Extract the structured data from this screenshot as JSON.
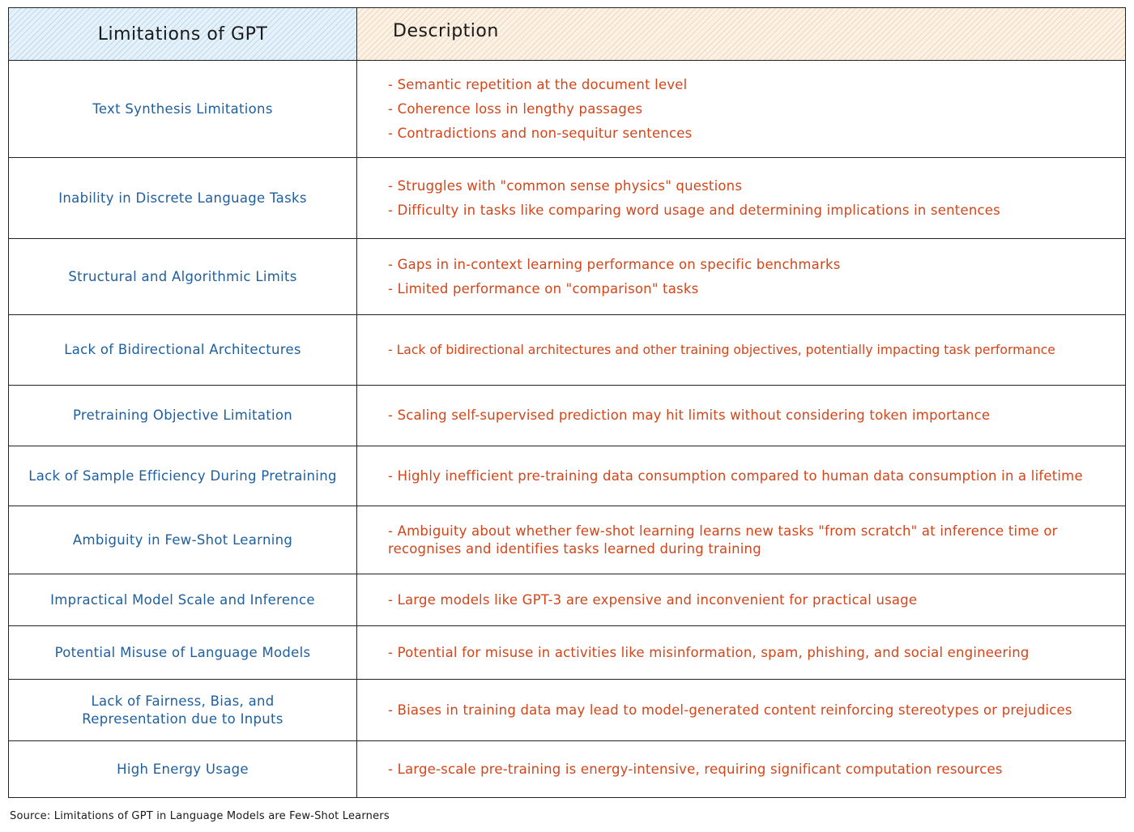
{
  "header": {
    "col1": "Limitations of GPT",
    "col2": "Description"
  },
  "rows": [
    {
      "limitation": "Text Synthesis Limitations",
      "descriptions": [
        "- Semantic repetition at the document level",
        "- Coherence loss in lengthy passages",
        "- Contradictions and non-sequitur sentences"
      ]
    },
    {
      "limitation": "Inability in Discrete Language Tasks",
      "descriptions": [
        "- Struggles with \"common sense physics\" questions",
        "- Difficulty in tasks like comparing word usage and determining implications in sentences"
      ]
    },
    {
      "limitation": "Structural and Algorithmic Limits",
      "descriptions": [
        "- Gaps in in-context learning performance on specific benchmarks",
        "- Limited performance on \"comparison\" tasks"
      ]
    },
    {
      "limitation": "Lack of Bidirectional Architectures",
      "descriptions": [
        "- Lack of bidirectional architectures and other training objectives, potentially impacting task performance"
      ]
    },
    {
      "limitation": "Pretraining Objective Limitation",
      "descriptions": [
        "- Scaling self-supervised prediction may hit limits without considering token importance"
      ]
    },
    {
      "limitation": "Lack of Sample Efficiency During Pretraining",
      "descriptions": [
        "- Highly inefficient pre-training data consumption compared to human data consumption in a lifetime"
      ]
    },
    {
      "limitation": "Ambiguity in Few-Shot Learning",
      "descriptions": [
        "- Ambiguity about whether few-shot learning learns new tasks \"from scratch\" at inference time or recognises and identifies tasks learned during training"
      ]
    },
    {
      "limitation": "Impractical Model Scale and Inference",
      "descriptions": [
        "- Large models like GPT-3 are expensive and inconvenient for practical usage"
      ]
    },
    {
      "limitation": "Potential Misuse of Language Models",
      "descriptions": [
        "- Potential for misuse in activities like misinformation, spam, phishing, and social engineering"
      ]
    },
    {
      "limitation": "Lack of Fairness, Bias, and Representation due to Inputs",
      "descriptions": [
        "- Biases in training data may lead to model-generated content reinforcing stereotypes or prejudices"
      ]
    },
    {
      "limitation": "High Energy Usage",
      "descriptions": [
        "- Large-scale pre-training is energy-intensive, requiring significant computation resources"
      ]
    }
  ],
  "source": "Source: Limitations of GPT in Language Models are Few-Shot Learners",
  "colors": {
    "limitation_text": "#1f5f9e",
    "description_text": "#d2461b",
    "header_left_fill": "#e6f2fb",
    "header_right_fill": "#fbf1e4"
  }
}
